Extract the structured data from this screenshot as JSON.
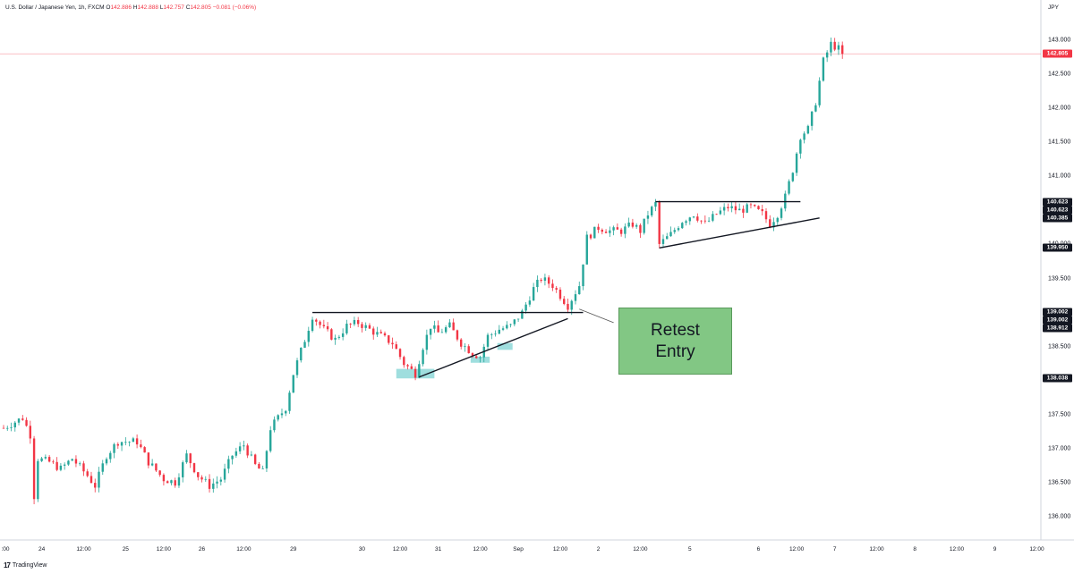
{
  "header": {
    "symbol": "U.S. Dollar / Japanese Yen, 1h, FXCM",
    "open_label": "O",
    "open_value": "142.886",
    "high_label": "H",
    "high_value": "142.888",
    "low_label": "L",
    "low_value": "142.757",
    "close_label": "C",
    "close_value": "142.805",
    "change": "−0.081 (−0.06%)"
  },
  "currency": "JPY",
  "footer": {
    "brand": "TradingView",
    "brand_mark": "17"
  },
  "callout": {
    "text": "Retest\nEntry"
  },
  "colors": {
    "up": "#26a69a",
    "down": "#f23645",
    "callout_bg": "#82c784",
    "highlight": "#7fd3d3"
  },
  "chart_data": {
    "type": "candlestick",
    "title": "U.S. Dollar / Japanese Yen, 1h, FXCM",
    "ylim": [
      135.75,
      143.3
    ],
    "y_ticks": [
      "143.000",
      "142.500",
      "142.000",
      "141.500",
      "141.000",
      "140.500",
      "140.000",
      "139.500",
      "139.000",
      "138.500",
      "138.000",
      "137.500",
      "137.000",
      "136.500",
      "136.000"
    ],
    "x_ticks": [
      {
        "label": ":00",
        "slot": 0
      },
      {
        "label": "24",
        "slot": 10
      },
      {
        "label": "12:00",
        "slot": 21
      },
      {
        "label": "25",
        "slot": 32
      },
      {
        "label": "12:00",
        "slot": 42
      },
      {
        "label": "26",
        "slot": 52
      },
      {
        "label": "12:00",
        "slot": 63
      },
      {
        "label": "29",
        "slot": 76
      },
      {
        "label": "30",
        "slot": 94
      },
      {
        "label": "12:00",
        "slot": 104
      },
      {
        "label": "31",
        "slot": 114
      },
      {
        "label": "12:00",
        "slot": 125
      },
      {
        "label": "Sep",
        "slot": 135
      },
      {
        "label": "12:00",
        "slot": 146
      },
      {
        "label": "2",
        "slot": 156
      },
      {
        "label": "12:00",
        "slot": 167
      },
      {
        "label": "5",
        "slot": 180
      },
      {
        "label": "6",
        "slot": 198
      },
      {
        "label": "12:00",
        "slot": 208
      },
      {
        "label": "7",
        "slot": 218
      },
      {
        "label": "12:00",
        "slot": 229
      },
      {
        "label": "8",
        "slot": 239
      },
      {
        "label": "12:00",
        "slot": 250
      },
      {
        "label": "9",
        "slot": 260
      },
      {
        "label": "12:00",
        "slot": 271
      }
    ],
    "price_tags": [
      {
        "value": "142.805",
        "color": "red"
      },
      {
        "value": "140.623",
        "color": "black"
      },
      {
        "value": "140.623",
        "color": "black"
      },
      {
        "value": "140.385",
        "color": "black"
      },
      {
        "value": "139.950",
        "color": "black"
      },
      {
        "value": "139.002",
        "color": "black"
      },
      {
        "value": "139.002",
        "color": "black"
      },
      {
        "value": "138.912",
        "color": "black"
      },
      {
        "value": "138.038",
        "color": "black"
      }
    ],
    "current_price": 142.805,
    "trendlines": [
      {
        "from": {
          "slot": 81,
          "price": 139.0
        },
        "to": {
          "slot": 152,
          "price": 139.0
        }
      },
      {
        "from": {
          "slot": 109,
          "price": 138.05
        },
        "to": {
          "slot": 148,
          "price": 138.91
        }
      },
      {
        "from": {
          "slot": 171,
          "price": 140.63
        },
        "to": {
          "slot": 209,
          "price": 140.63
        }
      },
      {
        "from": {
          "slot": 172,
          "price": 139.95
        },
        "to": {
          "slot": 214,
          "price": 140.39
        }
      },
      {
        "from": {
          "slot": 151,
          "price": 139.05
        },
        "to": {
          "slot": 160,
          "price": 138.85
        }
      }
    ],
    "highlights": [
      {
        "slot_from": 103,
        "slot_to": 113,
        "low": 138.03,
        "high": 138.17
      },
      {
        "slot_from": 122.5,
        "slot_to": 127.5,
        "low": 138.26,
        "high": 138.35
      },
      {
        "slot_from": 129.5,
        "slot_to": 133.5,
        "low": 138.45,
        "high": 138.55
      }
    ],
    "path": [
      {
        "slot": 0,
        "price": 137.3
      },
      {
        "slot": 5,
        "price": 137.45
      },
      {
        "slot": 7,
        "price": 137.2
      },
      {
        "slot": 8,
        "price": 136.3
      },
      {
        "slot": 9,
        "price": 136.85
      },
      {
        "slot": 12,
        "price": 136.8
      },
      {
        "slot": 15,
        "price": 136.7
      },
      {
        "slot": 18,
        "price": 136.85
      },
      {
        "slot": 22,
        "price": 136.6
      },
      {
        "slot": 24,
        "price": 136.45
      },
      {
        "slot": 27,
        "price": 136.9
      },
      {
        "slot": 30,
        "price": 137.1
      },
      {
        "slot": 35,
        "price": 137.1
      },
      {
        "slot": 38,
        "price": 136.8
      },
      {
        "slot": 42,
        "price": 136.55
      },
      {
        "slot": 45,
        "price": 136.5
      },
      {
        "slot": 48,
        "price": 136.9
      },
      {
        "slot": 51,
        "price": 136.6
      },
      {
        "slot": 54,
        "price": 136.45
      },
      {
        "slot": 57,
        "price": 136.55
      },
      {
        "slot": 60,
        "price": 136.9
      },
      {
        "slot": 63,
        "price": 137.05
      },
      {
        "slot": 66,
        "price": 136.75
      },
      {
        "slot": 68,
        "price": 136.65
      },
      {
        "slot": 70,
        "price": 137.3
      },
      {
        "slot": 72,
        "price": 137.45
      },
      {
        "slot": 74,
        "price": 137.6
      },
      {
        "slot": 76,
        "price": 138.1
      },
      {
        "slot": 79,
        "price": 138.6
      },
      {
        "slot": 81,
        "price": 138.95
      },
      {
        "slot": 84,
        "price": 138.75
      },
      {
        "slot": 87,
        "price": 138.6
      },
      {
        "slot": 90,
        "price": 138.8
      },
      {
        "slot": 93,
        "price": 138.85
      },
      {
        "slot": 96,
        "price": 138.75
      },
      {
        "slot": 99,
        "price": 138.65
      },
      {
        "slot": 102,
        "price": 138.55
      },
      {
        "slot": 105,
        "price": 138.25
      },
      {
        "slot": 108,
        "price": 138.1
      },
      {
        "slot": 110,
        "price": 138.5
      },
      {
        "slot": 112,
        "price": 138.8
      },
      {
        "slot": 114,
        "price": 138.7
      },
      {
        "slot": 117,
        "price": 138.8
      },
      {
        "slot": 120,
        "price": 138.55
      },
      {
        "slot": 123,
        "price": 138.4
      },
      {
        "slot": 125,
        "price": 138.35
      },
      {
        "slot": 127,
        "price": 138.65
      },
      {
        "slot": 130,
        "price": 138.75
      },
      {
        "slot": 133,
        "price": 138.8
      },
      {
        "slot": 136,
        "price": 139.0
      },
      {
        "slot": 139,
        "price": 139.35
      },
      {
        "slot": 141,
        "price": 139.5
      },
      {
        "slot": 144,
        "price": 139.4
      },
      {
        "slot": 146,
        "price": 139.25
      },
      {
        "slot": 148,
        "price": 139.1
      },
      {
        "slot": 151,
        "price": 139.4
      },
      {
        "slot": 153,
        "price": 140.1
      },
      {
        "slot": 156,
        "price": 140.25
      },
      {
        "slot": 159,
        "price": 140.2
      },
      {
        "slot": 162,
        "price": 140.2
      },
      {
        "slot": 165,
        "price": 140.3
      },
      {
        "slot": 167,
        "price": 140.2
      },
      {
        "slot": 169,
        "price": 140.45
      },
      {
        "slot": 171,
        "price": 140.6
      },
      {
        "slot": 172,
        "price": 140.0
      },
      {
        "slot": 175,
        "price": 140.15
      },
      {
        "slot": 178,
        "price": 140.35
      },
      {
        "slot": 181,
        "price": 140.45
      },
      {
        "slot": 184,
        "price": 140.3
      },
      {
        "slot": 187,
        "price": 140.45
      },
      {
        "slot": 190,
        "price": 140.55
      },
      {
        "slot": 193,
        "price": 140.5
      },
      {
        "slot": 196,
        "price": 140.55
      },
      {
        "slot": 199,
        "price": 140.45
      },
      {
        "slot": 201,
        "price": 140.3
      },
      {
        "slot": 203,
        "price": 140.45
      },
      {
        "slot": 205,
        "price": 140.7
      },
      {
        "slot": 207,
        "price": 141.1
      },
      {
        "slot": 209,
        "price": 141.6
      },
      {
        "slot": 211,
        "price": 141.7
      },
      {
        "slot": 213,
        "price": 142.1
      },
      {
        "slot": 215,
        "price": 142.7
      },
      {
        "slot": 217,
        "price": 142.95
      },
      {
        "slot": 219,
        "price": 142.88
      },
      {
        "slot": 220,
        "price": 142.805
      }
    ]
  }
}
